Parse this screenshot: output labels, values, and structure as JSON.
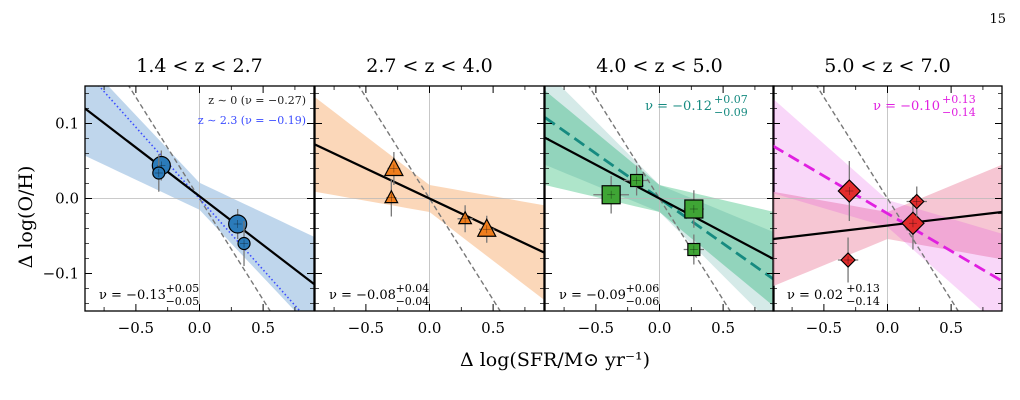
{
  "page_number": "15",
  "chart_data": {
    "type": "scatter",
    "xlabel": "Δ log(SFR/M⊙ yr⁻¹)",
    "ylabel": "Δ log(O/H)",
    "xlim": [
      -0.9,
      0.9
    ],
    "ylim": [
      -0.15,
      0.15
    ],
    "xticks": [
      -0.5,
      0.0,
      0.5
    ],
    "xtick_labels": [
      "−0.5",
      "0.0",
      "0.5"
    ],
    "yticks": [
      -0.1,
      0.0,
      0.1
    ],
    "ytick_labels": [
      "−0.1",
      "0.0",
      "0.1"
    ],
    "grid": "x=0 and y=0 reference lines",
    "reference_line_slope": -0.27,
    "panels": [
      {
        "title": "1.4 < z < 2.7",
        "color": "#2b7bba",
        "band_color": "#a9c8e6",
        "marker": "circle",
        "fit": {
          "slope": -0.13,
          "intercept": 0.003
        },
        "fit_label": "ν = −0.13",
        "fit_label_sup": "+0.05",
        "fit_label_sub": "−0.05",
        "extra_lines": [
          {
            "slope": -0.19,
            "intercept": 0.0,
            "color": "#3b4cff",
            "style": "dotted"
          }
        ],
        "annotations": [
          {
            "text": "z ∼ 0 (ν = −0.27)",
            "color": "#222222"
          },
          {
            "text": "z ∼ 2.3 (ν = −0.19)",
            "color": "#3b4cff"
          }
        ],
        "points": [
          {
            "x": -0.3,
            "y": 0.044,
            "xerr": 0.05,
            "yerr": 0.02,
            "size": "large"
          },
          {
            "x": -0.32,
            "y": 0.034,
            "xerr": 0.04,
            "yerr": 0.025,
            "size": "small"
          },
          {
            "x": 0.3,
            "y": -0.034,
            "xerr": 0.05,
            "yerr": 0.02,
            "size": "large"
          },
          {
            "x": 0.35,
            "y": -0.06,
            "xerr": 0.04,
            "yerr": 0.03,
            "size": "small"
          }
        ]
      },
      {
        "title": "2.7 < z < 4.0",
        "color": "#f07e1d",
        "band_color": "#f9c9a1",
        "marker": "triangle",
        "fit": {
          "slope": -0.08,
          "intercept": 0.0
        },
        "fit_label": "ν = −0.08",
        "fit_label_sup": "+0.04",
        "fit_label_sub": "−0.04",
        "extra_lines": [],
        "annotations": [],
        "points": [
          {
            "x": -0.28,
            "y": 0.04,
            "xerr": 0.05,
            "yerr": 0.022,
            "size": "large"
          },
          {
            "x": -0.3,
            "y": 0.001,
            "xerr": 0.04,
            "yerr": 0.025,
            "size": "small"
          },
          {
            "x": 0.28,
            "y": -0.027,
            "xerr": 0.06,
            "yerr": 0.018,
            "size": "small"
          },
          {
            "x": 0.45,
            "y": -0.041,
            "xerr": 0.06,
            "yerr": 0.018,
            "size": "large"
          }
        ]
      },
      {
        "title": "4.0 < z < 5.0",
        "color": "#3fa535",
        "band_color": "#93dcb8",
        "marker": "square",
        "fit": {
          "slope": -0.09,
          "intercept": 0.0
        },
        "fit_label": "ν = −0.09",
        "fit_label_sup": "+0.06",
        "fit_label_sub": "−0.06",
        "extra_lines": [
          {
            "slope": -0.12,
            "intercept": 0.0,
            "color": "#168a80",
            "style": "dashed"
          }
        ],
        "annotations": [
          {
            "text": "ν = −0.12",
            "sup": "+0.07",
            "sub": "−0.09",
            "color": "#168a80"
          }
        ],
        "points": [
          {
            "x": -0.38,
            "y": 0.005,
            "xerr": 0.14,
            "yerr": 0.025,
            "size": "large"
          },
          {
            "x": -0.18,
            "y": 0.024,
            "xerr": 0.1,
            "yerr": 0.02,
            "size": "small"
          },
          {
            "x": 0.27,
            "y": -0.014,
            "xerr": 0.08,
            "yerr": 0.025,
            "size": "large"
          },
          {
            "x": 0.27,
            "y": -0.068,
            "xerr": 0.08,
            "yerr": 0.02,
            "size": "small"
          }
        ]
      },
      {
        "title": "5.0 < z < 7.0",
        "color": "#e22c2c",
        "band_color": "#f3b3c4",
        "marker": "diamond",
        "fit": {
          "slope": 0.02,
          "intercept": -0.036
        },
        "fit_label": "ν = 0.02",
        "fit_label_sup": "+0.13",
        "fit_label_sub": "−0.14",
        "extra_lines": [
          {
            "slope": -0.1,
            "intercept": -0.02,
            "color": "#e020e0",
            "style": "dashed"
          }
        ],
        "annotations": [
          {
            "text": "ν = −0.10",
            "sup": "+0.13",
            "sub": "−0.14",
            "color": "#e020e0"
          }
        ],
        "points": [
          {
            "x": -0.3,
            "y": 0.01,
            "xerr": 0.05,
            "yerr": 0.04,
            "size": "large"
          },
          {
            "x": -0.31,
            "y": -0.082,
            "xerr": 0.08,
            "yerr": 0.03,
            "size": "small"
          },
          {
            "x": 0.2,
            "y": -0.033,
            "xerr": 0.06,
            "yerr": 0.035,
            "size": "large"
          },
          {
            "x": 0.23,
            "y": -0.004,
            "xerr": 0.08,
            "yerr": 0.02,
            "size": "small"
          }
        ]
      }
    ]
  }
}
